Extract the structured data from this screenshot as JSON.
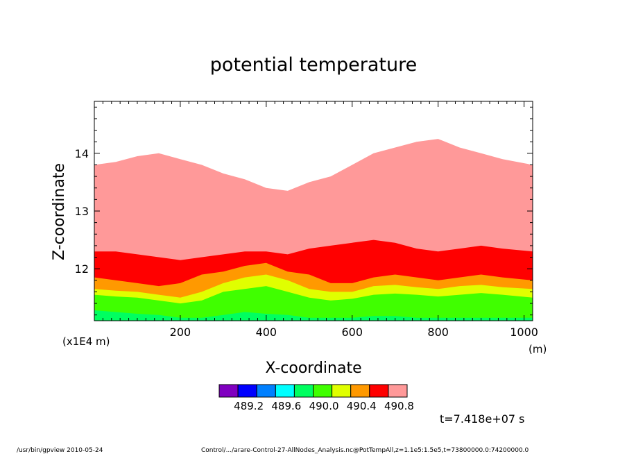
{
  "chart_data": {
    "type": "heatmap",
    "title": "potential temperature",
    "xlabel": "X-coordinate",
    "ylabel": "Z-coordinate",
    "x_unit": "(m)",
    "y_multiplier": "(x1E4 m)",
    "xlim": [
      0,
      1020
    ],
    "ylim": [
      11.1,
      14.9
    ],
    "x_ticks": [
      200,
      400,
      600,
      800,
      1000
    ],
    "y_ticks": [
      12,
      13,
      14
    ],
    "color_levels": [
      {
        "color": "#8000c0"
      },
      {
        "color": "#0000ff"
      },
      {
        "color": "#0080ff"
      },
      {
        "color": "#00ffff"
      },
      {
        "color": "#00ff60"
      },
      {
        "color": "#40ff00"
      },
      {
        "color": "#e0ff00"
      },
      {
        "color": "#ff9900"
      },
      {
        "color": "#ff0000"
      },
      {
        "color": "#ff9999"
      }
    ],
    "colorbar_labels": [
      "489.2",
      "489.6",
      "490.0",
      "490.4",
      "490.8"
    ],
    "boundaries": {
      "x": [
        0,
        50,
        100,
        150,
        200,
        250,
        300,
        350,
        400,
        450,
        500,
        550,
        600,
        650,
        700,
        750,
        800,
        850,
        900,
        950,
        1020
      ],
      "top_pink": [
        13.8,
        13.85,
        13.95,
        14.0,
        13.9,
        13.8,
        13.65,
        13.55,
        13.4,
        13.35,
        13.5,
        13.6,
        13.8,
        14.0,
        14.1,
        14.2,
        14.25,
        14.1,
        14.0,
        13.9,
        13.8
      ],
      "top_red": [
        12.3,
        12.3,
        12.25,
        12.2,
        12.15,
        12.2,
        12.25,
        12.3,
        12.3,
        12.25,
        12.35,
        12.4,
        12.45,
        12.5,
        12.45,
        12.35,
        12.3,
        12.35,
        12.4,
        12.35,
        12.3
      ],
      "top_orange": [
        11.85,
        11.8,
        11.75,
        11.7,
        11.75,
        11.9,
        11.95,
        12.05,
        12.1,
        11.95,
        11.9,
        11.75,
        11.75,
        11.85,
        11.9,
        11.85,
        11.8,
        11.85,
        11.9,
        11.85,
        11.8
      ],
      "top_yellow": [
        11.65,
        11.62,
        11.6,
        11.55,
        11.5,
        11.6,
        11.75,
        11.85,
        11.9,
        11.8,
        11.65,
        11.6,
        11.6,
        11.7,
        11.72,
        11.68,
        11.65,
        11.7,
        11.72,
        11.68,
        11.65
      ],
      "top_green": [
        11.55,
        11.52,
        11.5,
        11.45,
        11.4,
        11.45,
        11.6,
        11.65,
        11.7,
        11.6,
        11.5,
        11.45,
        11.48,
        11.55,
        11.57,
        11.55,
        11.52,
        11.55,
        11.58,
        11.55,
        11.5
      ],
      "top_lightgreen": [
        11.28,
        11.25,
        11.22,
        11.2,
        11.15,
        11.15,
        11.2,
        11.25,
        11.22,
        11.2,
        11.15,
        11.15,
        11.15,
        11.18,
        11.18,
        11.15,
        11.15,
        11.15,
        11.15,
        11.15,
        11.15
      ]
    }
  },
  "time_label": "t=7.418e+07 s",
  "footer_left": "/usr/bin/gpview  2010-05-24",
  "footer_right": "Control/.../arare-Control-27-AllNodes_Analysis.nc@PotTempAll,z=1.1e5:1.5e5,t=73800000.0:74200000.0"
}
